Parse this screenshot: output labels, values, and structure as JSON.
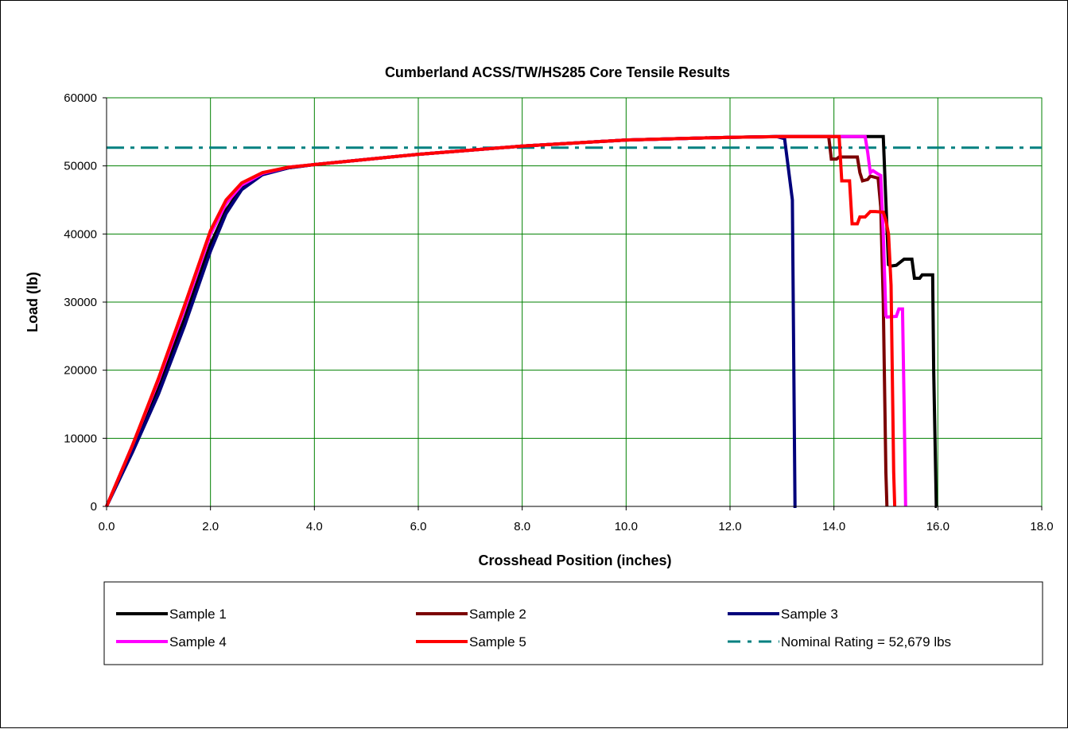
{
  "chart_data": {
    "type": "line",
    "title": "Cumberland ACSS/TW/HS285 Core Tensile Results",
    "xlabel": "Crosshead Position (inches)",
    "ylabel": "Load (lb)",
    "xlim": [
      0,
      18
    ],
    "ylim": [
      0,
      60000
    ],
    "x_ticks": [
      "0.0",
      "2.0",
      "4.0",
      "6.0",
      "8.0",
      "10.0",
      "12.0",
      "14.0",
      "16.0",
      "18.0"
    ],
    "y_ticks": [
      "0",
      "10000",
      "20000",
      "30000",
      "40000",
      "50000",
      "60000"
    ],
    "grid": true,
    "legend_position": "bottom",
    "series": [
      {
        "name": "Sample 1",
        "color": "#000000",
        "style": "solid",
        "x": [
          0.0,
          0.5,
          1.0,
          1.5,
          2.0,
          2.3,
          2.6,
          3.0,
          3.5,
          4.0,
          6.0,
          8.0,
          10.0,
          12.0,
          13.0,
          14.0,
          14.95,
          15.02,
          15.05,
          15.1,
          15.2,
          15.3,
          15.35,
          15.5,
          15.55,
          15.65,
          15.7,
          15.9,
          15.92,
          15.97,
          15.98
        ],
        "y": [
          0,
          8500,
          17500,
          27500,
          38500,
          43500,
          46800,
          48800,
          49700,
          50200,
          51700,
          52900,
          53800,
          54200,
          54300,
          54300,
          54300,
          41000,
          35500,
          35300,
          35400,
          36000,
          36300,
          36300,
          33500,
          33500,
          34000,
          34000,
          20000,
          0,
          0
        ]
      },
      {
        "name": "Sample 2",
        "color": "#7b0000",
        "style": "solid",
        "x": [
          0.0,
          0.5,
          1.0,
          1.5,
          2.0,
          2.3,
          2.6,
          3.0,
          3.5,
          4.0,
          6.0,
          8.0,
          10.0,
          12.0,
          13.0,
          13.9,
          13.95,
          14.05,
          14.1,
          14.3,
          14.45,
          14.5,
          14.55,
          14.65,
          14.7,
          14.85,
          14.9,
          14.95,
          15.0,
          15.02
        ],
        "y": [
          0,
          9000,
          18500,
          29000,
          40000,
          44500,
          47200,
          48900,
          49800,
          50200,
          51700,
          52900,
          53800,
          54200,
          54300,
          54300,
          51000,
          51000,
          51300,
          51300,
          51300,
          49000,
          47800,
          48000,
          48500,
          48200,
          44000,
          30000,
          5000,
          0
        ]
      },
      {
        "name": "Sample 3",
        "color": "#00007b",
        "style": "solid",
        "x": [
          0.0,
          0.5,
          1.0,
          1.5,
          2.0,
          2.3,
          2.6,
          3.0,
          3.5,
          4.0,
          6.0,
          8.0,
          10.0,
          12.0,
          12.9,
          13.05,
          13.2,
          13.25,
          13.28
        ],
        "y": [
          0,
          8000,
          16500,
          26500,
          37500,
          43000,
          46500,
          48700,
          49700,
          50200,
          51700,
          52900,
          53800,
          54200,
          54300,
          54000,
          45000,
          0,
          0
        ]
      },
      {
        "name": "Sample 4",
        "color": "#ff00ff",
        "style": "solid",
        "x": [
          0.0,
          0.5,
          1.0,
          1.5,
          2.0,
          2.3,
          2.6,
          3.0,
          3.5,
          4.0,
          6.0,
          8.0,
          10.0,
          12.0,
          13.0,
          14.0,
          14.6,
          14.65,
          14.7,
          14.75,
          14.85,
          14.9,
          14.95,
          15.0,
          15.02,
          15.2,
          15.25,
          15.32,
          15.35,
          15.38
        ],
        "y": [
          0,
          9000,
          18500,
          29000,
          40000,
          44500,
          47200,
          48900,
          49800,
          50200,
          51700,
          52900,
          53800,
          54200,
          54300,
          54300,
          54300,
          52000,
          49000,
          49300,
          48800,
          48600,
          40000,
          28000,
          27800,
          27900,
          29000,
          29000,
          15000,
          0
        ]
      },
      {
        "name": "Sample 5",
        "color": "#ff0000",
        "style": "solid",
        "x": [
          0.0,
          0.5,
          1.0,
          1.5,
          2.0,
          2.3,
          2.6,
          3.0,
          3.5,
          4.0,
          6.0,
          8.0,
          10.0,
          12.0,
          13.0,
          14.0,
          14.1,
          14.15,
          14.25,
          14.3,
          14.35,
          14.45,
          14.5,
          14.6,
          14.7,
          14.8,
          14.95,
          15.0,
          15.05,
          15.1,
          15.15,
          15.17
        ],
        "y": [
          0,
          9000,
          18800,
          29500,
          40500,
          45000,
          47500,
          49000,
          49800,
          50200,
          51700,
          52900,
          53800,
          54200,
          54300,
          54300,
          54300,
          47800,
          47800,
          47800,
          41500,
          41500,
          42500,
          42500,
          43300,
          43300,
          43200,
          42000,
          40000,
          32500,
          5000,
          0
        ]
      },
      {
        "name": "Nominal Rating = 52,679 lbs",
        "color": "#008080",
        "style": "dashdot",
        "x": [
          0,
          18
        ],
        "y": [
          52679,
          52679
        ]
      }
    ]
  }
}
